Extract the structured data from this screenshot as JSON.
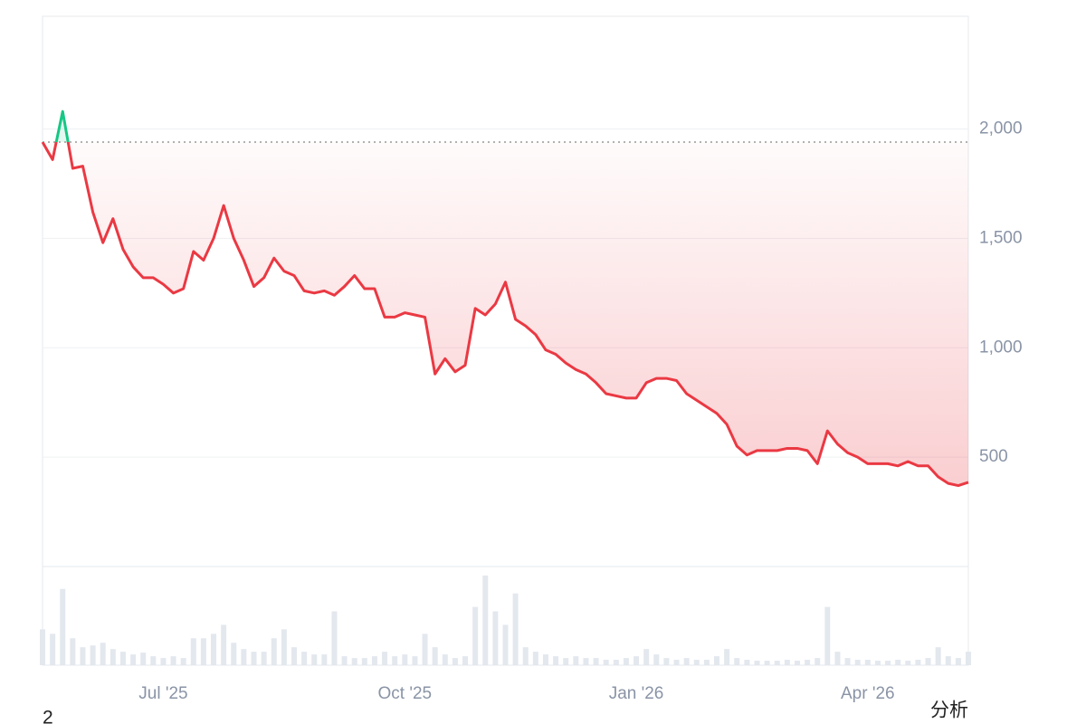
{
  "chart_data": {
    "type": "line",
    "categories": [
      null,
      null,
      null,
      null,
      null,
      null,
      null,
      null,
      null,
      null,
      null,
      null,
      "Jul '25",
      null,
      null,
      null,
      null,
      null,
      null,
      null,
      null,
      null,
      null,
      null,
      null,
      null,
      null,
      null,
      null,
      null,
      null,
      null,
      null,
      null,
      null,
      null,
      "Oct '25",
      null,
      null,
      null,
      null,
      null,
      null,
      null,
      null,
      null,
      null,
      null,
      null,
      null,
      null,
      null,
      null,
      null,
      null,
      null,
      null,
      null,
      null,
      "Jan '26",
      null,
      null,
      null,
      null,
      null,
      null,
      null,
      null,
      null,
      null,
      null,
      null,
      null,
      null,
      null,
      null,
      null,
      null,
      null,
      null,
      null,
      null,
      "Apr '26",
      null,
      null,
      null,
      null,
      null,
      null,
      null,
      null,
      null,
      null
    ],
    "series": [
      {
        "values": [
          1940,
          1860,
          2080,
          1820,
          1830,
          1620,
          1480,
          1590,
          1450,
          1370,
          1320,
          1320,
          1290,
          1250,
          1270,
          1440,
          1400,
          1500,
          1650,
          1500,
          1400,
          1280,
          1320,
          1410,
          1350,
          1330,
          1260,
          1250,
          1260,
          1240,
          1280,
          1330,
          1270,
          1270,
          1140,
          1140,
          1160,
          1150,
          1140,
          880,
          950,
          890,
          920,
          1180,
          1150,
          1200,
          1300,
          1130,
          1100,
          1060,
          990,
          970,
          930,
          900,
          880,
          840,
          790,
          780,
          770,
          770,
          840,
          860,
          860,
          850,
          790,
          760,
          730,
          700,
          650,
          550,
          510,
          530,
          530,
          530,
          540,
          540,
          530,
          470,
          620,
          560,
          520,
          500,
          470,
          470,
          470,
          460,
          480,
          460,
          460,
          410,
          380,
          370,
          385
        ]
      },
      {
        "axis": "y2",
        "color": "#e3e8ee",
        "values": [
          40,
          35,
          85,
          30,
          20,
          22,
          25,
          18,
          15,
          12,
          14,
          10,
          8,
          10,
          8,
          30,
          30,
          35,
          45,
          25,
          18,
          15,
          15,
          30,
          40,
          20,
          15,
          12,
          12,
          60,
          10,
          8,
          8,
          10,
          15,
          10,
          12,
          10,
          35,
          20,
          12,
          8,
          10,
          65,
          100,
          60,
          45,
          80,
          20,
          15,
          12,
          10,
          8,
          10,
          8,
          8,
          6,
          6,
          8,
          10,
          18,
          12,
          8,
          6,
          8,
          6,
          6,
          10,
          18,
          8,
          6,
          5,
          5,
          5,
          6,
          5,
          6,
          8,
          65,
          15,
          8,
          6,
          6,
          5,
          5,
          6,
          5,
          6,
          8,
          20,
          10,
          8,
          15
        ]
      }
    ],
    "baseline": 1940,
    "up_color": "#16c784",
    "down_color": "#ea3943",
    "ylim": [
      0,
      2515
    ],
    "yticks": [
      {
        "value": 500,
        "label": "500"
      },
      {
        "value": 1000,
        "label": "1,000"
      },
      {
        "value": 1500,
        "label": "1,500"
      },
      {
        "value": 2000,
        "label": "2,000"
      }
    ],
    "y2lim": [
      0,
      110
    ],
    "grid": true,
    "corner_texts": [
      "2",
      "分析"
    ]
  }
}
